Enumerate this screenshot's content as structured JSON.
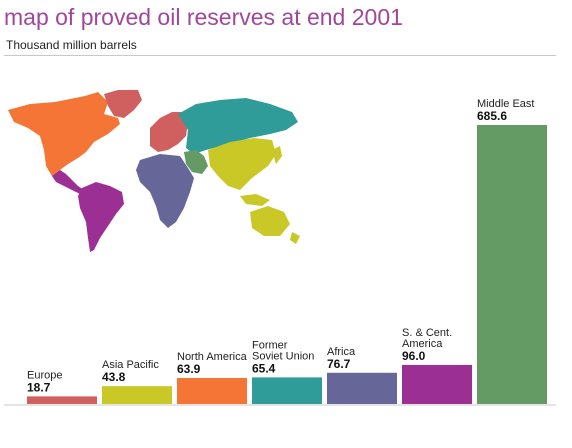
{
  "title": "map of proved oil reserves at end 2001",
  "subtitle": "Thousand million barrels",
  "chart_data": {
    "type": "bar",
    "title": "map of proved oil reserves at end 2001",
    "ylabel": "Thousand million barrels",
    "ylim": [
      0,
      700
    ],
    "grid": false,
    "legend": "none",
    "categories": [
      [
        "Europe"
      ],
      [
        "Asia Pacific"
      ],
      [
        "North America"
      ],
      [
        "Former",
        "Soviet Union"
      ],
      [
        "Africa"
      ],
      [
        "S. & Cent.",
        "America"
      ],
      [
        "Middle East"
      ]
    ],
    "values": [
      18.7,
      43.8,
      63.9,
      65.4,
      76.7,
      96.0,
      685.6
    ],
    "value_labels": [
      "18.7",
      "43.8",
      "63.9",
      "65.4",
      "76.7",
      "96.0",
      "685.6"
    ],
    "colors": [
      "#d0605f",
      "#c9c826",
      "#f47535",
      "#2f9c9a",
      "#676698",
      "#9b2f93",
      "#649b64"
    ]
  }
}
